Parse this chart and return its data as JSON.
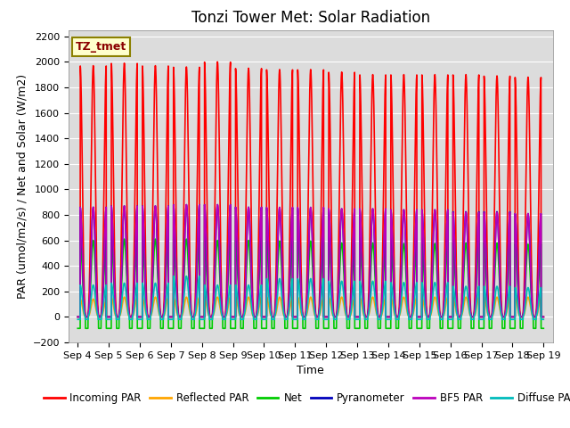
{
  "title": "Tonzi Tower Met: Solar Radiation",
  "ylabel": "PAR (umol/m2/s) / Net and Solar (W/m2)",
  "xlabel": "Time",
  "ylim": [
    -200,
    2250
  ],
  "yticks": [
    -200,
    0,
    200,
    400,
    600,
    800,
    1000,
    1200,
    1400,
    1600,
    1800,
    2000,
    2200
  ],
  "bg_color": "#dcdcdc",
  "fig_color": "#ffffff",
  "label_box": "TZ_tmet",
  "series": [
    {
      "label": "Incoming PAR",
      "color": "#ff0000",
      "lw": 1.2
    },
    {
      "label": "Reflected PAR",
      "color": "#ffa500",
      "lw": 1.2
    },
    {
      "label": "Net",
      "color": "#00cc00",
      "lw": 1.2
    },
    {
      "label": "Pyranometer",
      "color": "#0000bb",
      "lw": 1.2
    },
    {
      "label": "BF5 PAR",
      "color": "#bb00bb",
      "lw": 1.2
    },
    {
      "label": "Diffuse PAR",
      "color": "#00bbbb",
      "lw": 1.2
    }
  ],
  "num_days": 15,
  "peaks_incoming": [
    1970,
    1990,
    1970,
    1960,
    2000,
    1950,
    1940,
    1940,
    1920,
    1900,
    1900,
    1900,
    1900,
    1890,
    1880
  ],
  "peaks_bf5": [
    860,
    870,
    870,
    880,
    880,
    860,
    860,
    860,
    850,
    850,
    840,
    840,
    820,
    820,
    810
  ],
  "peaks_pyranometer": [
    860,
    870,
    870,
    880,
    880,
    860,
    855,
    855,
    845,
    845,
    840,
    840,
    825,
    825,
    810
  ],
  "peaks_reflected": [
    140,
    155,
    155,
    155,
    155,
    155,
    155,
    155,
    155,
    155,
    155,
    155,
    155,
    155,
    155
  ],
  "peaks_net": [
    600,
    610,
    610,
    610,
    600,
    600,
    595,
    595,
    580,
    580,
    575,
    575,
    580,
    580,
    570
  ],
  "peaks_diffuse": [
    250,
    265,
    265,
    320,
    250,
    250,
    300,
    300,
    280,
    280,
    270,
    270,
    240,
    240,
    230
  ],
  "title_fontsize": 12,
  "tick_fontsize": 8,
  "label_fontsize": 9,
  "legend_fontsize": 8.5
}
